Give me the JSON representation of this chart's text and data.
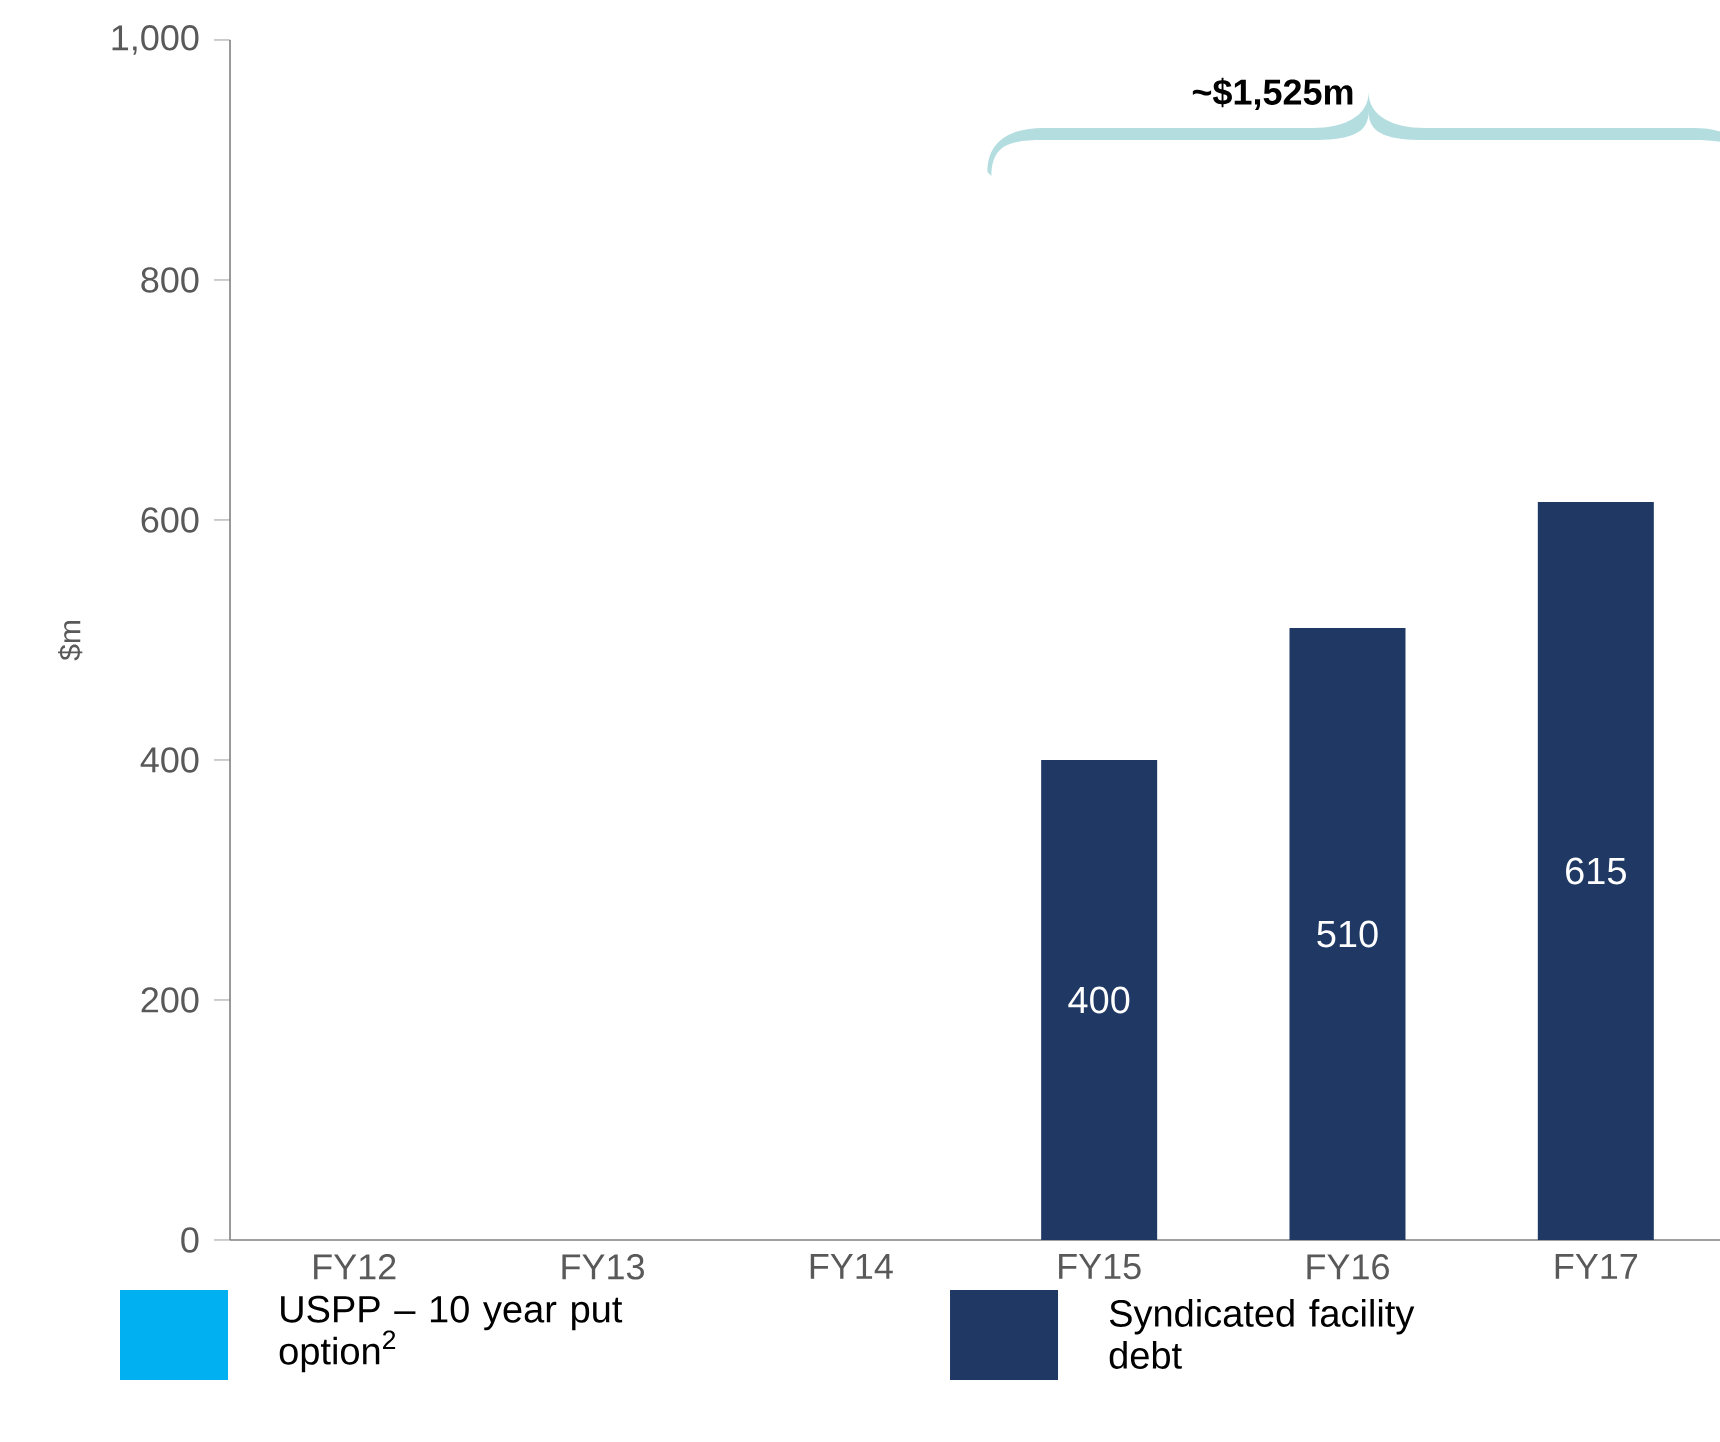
{
  "chart_data": {
    "type": "bar",
    "stacked": true,
    "ylabel": "$m",
    "categories": [
      "FY12",
      "FY13",
      "FY14",
      "FY15",
      "FY16",
      "FY17"
    ],
    "series": [
      {
        "name": "USPP – 10 year put option$^{2}$",
        "color": "#00b0f0",
        "values": [
          null,
          null,
          null,
          null,
          null,
          null
        ]
      },
      {
        "name": "Syndicated facility debt",
        "color": "#1f3864",
        "values": [
          null,
          null,
          null,
          400,
          510,
          615
        ],
        "value_labels": [
          null,
          null,
          null,
          "400",
          "510",
          "615"
        ]
      }
    ],
    "ylim": [
      0,
      1000
    ],
    "yticks": [
      0,
      200,
      400,
      600,
      800,
      {
        "value": 1000,
        "label": "1,000"
      }
    ],
    "annotations": [
      "~$1,525m"
    ],
    "grid": false,
    "legend": "bottom"
  }
}
